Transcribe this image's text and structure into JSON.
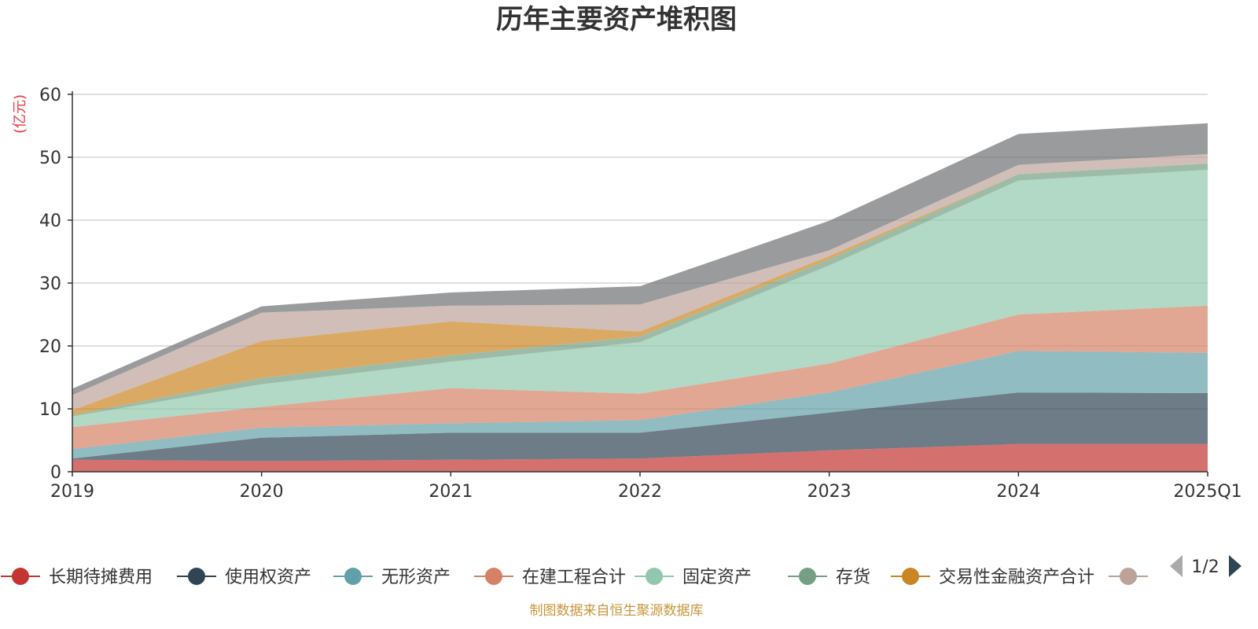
{
  "chart_data": {
    "type": "area",
    "title": "历年主要资产堆积图",
    "unit_label": "(亿元)",
    "source_note": "制图数据来自恒生聚源数据库",
    "x": [
      "2019",
      "2020",
      "2021",
      "2022",
      "2023",
      "2024",
      "2025Q1"
    ],
    "ylim": [
      0,
      60
    ],
    "yticks": [
      0,
      10,
      20,
      30,
      40,
      50,
      60
    ],
    "grid": true,
    "stacked": true,
    "legend_position": "bottom",
    "legend_page": "1/2",
    "series": [
      {
        "name": "长期待摊费用",
        "color": "#c23531",
        "values": [
          1.9,
          1.7,
          1.9,
          2.1,
          3.4,
          4.4,
          4.4
        ]
      },
      {
        "name": "使用权资产",
        "color": "#2f4554",
        "values": [
          0.2,
          3.7,
          4.3,
          4.1,
          6.0,
          8.2,
          8.1
        ]
      },
      {
        "name": "无形资产",
        "color": "#61a0a8",
        "values": [
          1.5,
          1.6,
          1.5,
          2.0,
          3.2,
          6.6,
          6.4
        ]
      },
      {
        "name": "在建工程合计",
        "color": "#d48265",
        "values": [
          3.5,
          3.3,
          5.6,
          4.2,
          4.6,
          5.8,
          7.5
        ]
      },
      {
        "name": "固定资产",
        "color": "#91c7ae",
        "values": [
          1.7,
          3.6,
          4.2,
          8.2,
          15.6,
          21.3,
          21.6
        ]
      },
      {
        "name": "存货",
        "color": "#749f83",
        "values": [
          0.2,
          1.0,
          1.0,
          0.9,
          1.0,
          1.0,
          1.0
        ]
      },
      {
        "name": "交易性金融资产合计",
        "color": "#ca8622",
        "values": [
          0.8,
          5.9,
          5.4,
          0.8,
          0.5,
          0.0,
          0.0
        ]
      },
      {
        "name": "",
        "color": "#bda29a",
        "values": [
          2.4,
          4.5,
          2.5,
          4.3,
          0.9,
          1.5,
          1.5
        ]
      },
      {
        "name": "",
        "color": "#6e7074",
        "values": [
          1.0,
          1.0,
          2.1,
          2.9,
          4.7,
          4.9,
          4.9
        ]
      }
    ]
  }
}
